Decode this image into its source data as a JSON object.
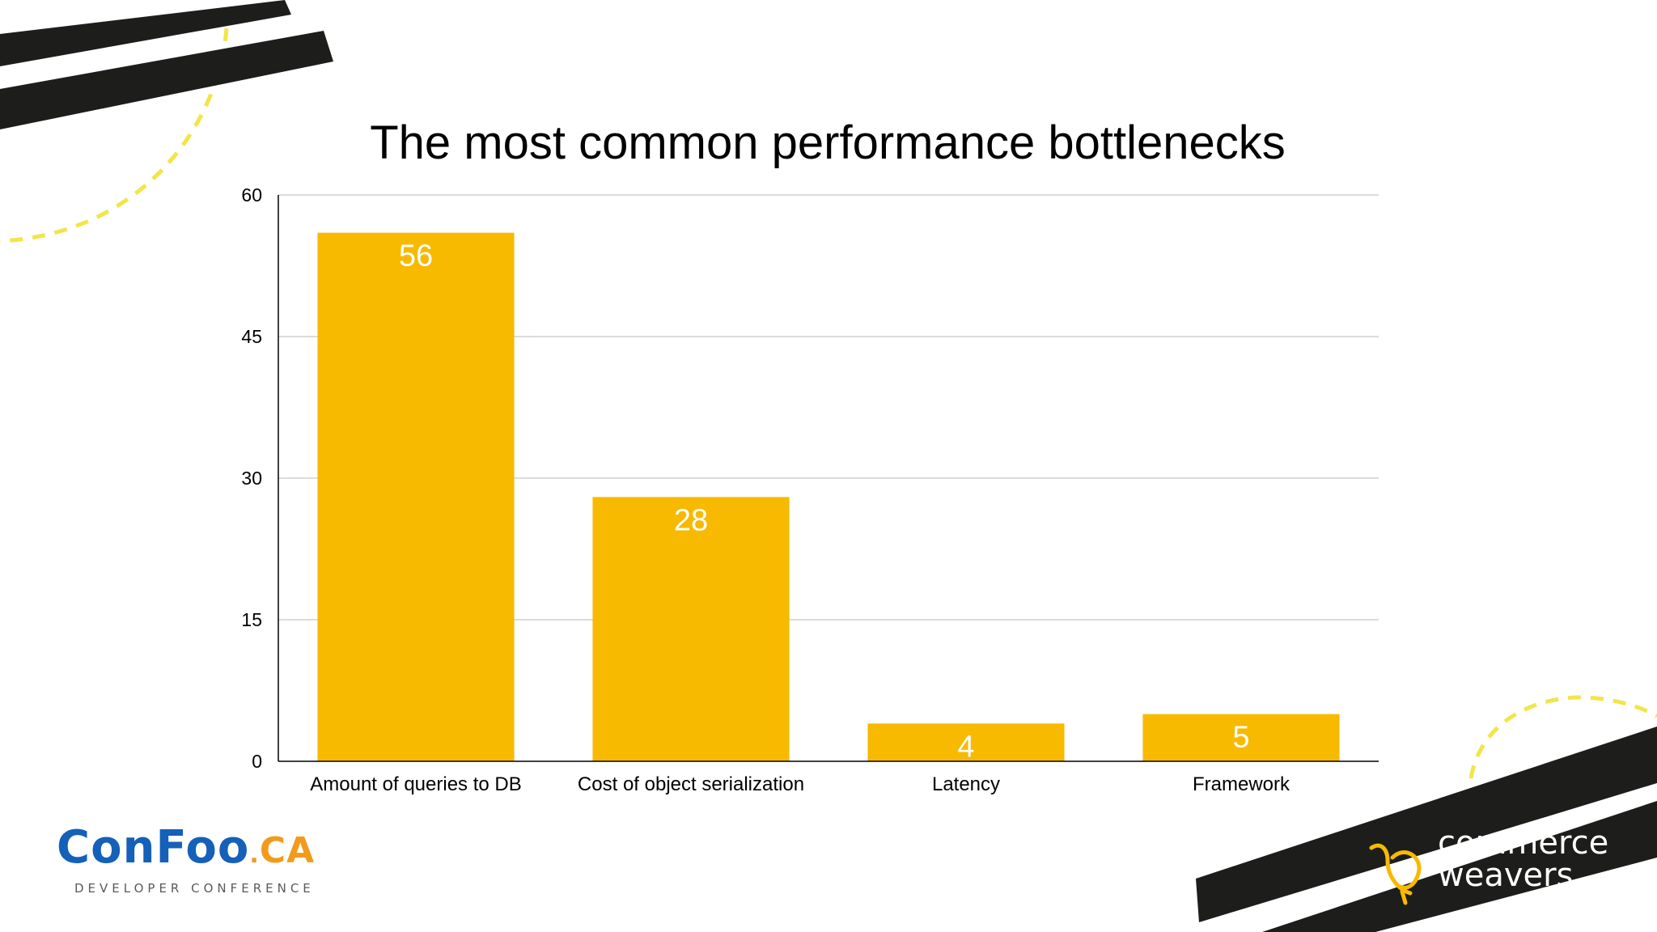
{
  "slide": {
    "brand_left": {
      "main": "ConFoo",
      "dot": ".",
      "suffix": "CA",
      "sub": "DEVELOPER CONFERENCE"
    },
    "brand_right": {
      "line1": "commerce",
      "line2": "weavers"
    },
    "colors": {
      "bar": "#F7BA00",
      "dashed": "#F2E54A",
      "stripe": "#1d1d1b",
      "confoo_blue": "#1560b8",
      "confoo_orange": "#f29a1c"
    }
  },
  "chart_data": {
    "type": "bar",
    "title": "The most common performance bottlenecks",
    "xlabel": "",
    "ylabel": "",
    "categories": [
      "Amount of queries to DB",
      "Cost of object serialization",
      "Latency",
      "Framework"
    ],
    "values": [
      56,
      28,
      4,
      5
    ],
    "data_labels": [
      "56",
      "28",
      "4",
      "5"
    ],
    "ylim": [
      0,
      60
    ],
    "yticks": [
      0,
      15,
      30,
      45,
      60
    ],
    "ytick_labels": [
      "0",
      "15",
      "30",
      "45",
      "60"
    ],
    "grid": true,
    "legend": "none",
    "bar_color": "#F7BA00"
  }
}
